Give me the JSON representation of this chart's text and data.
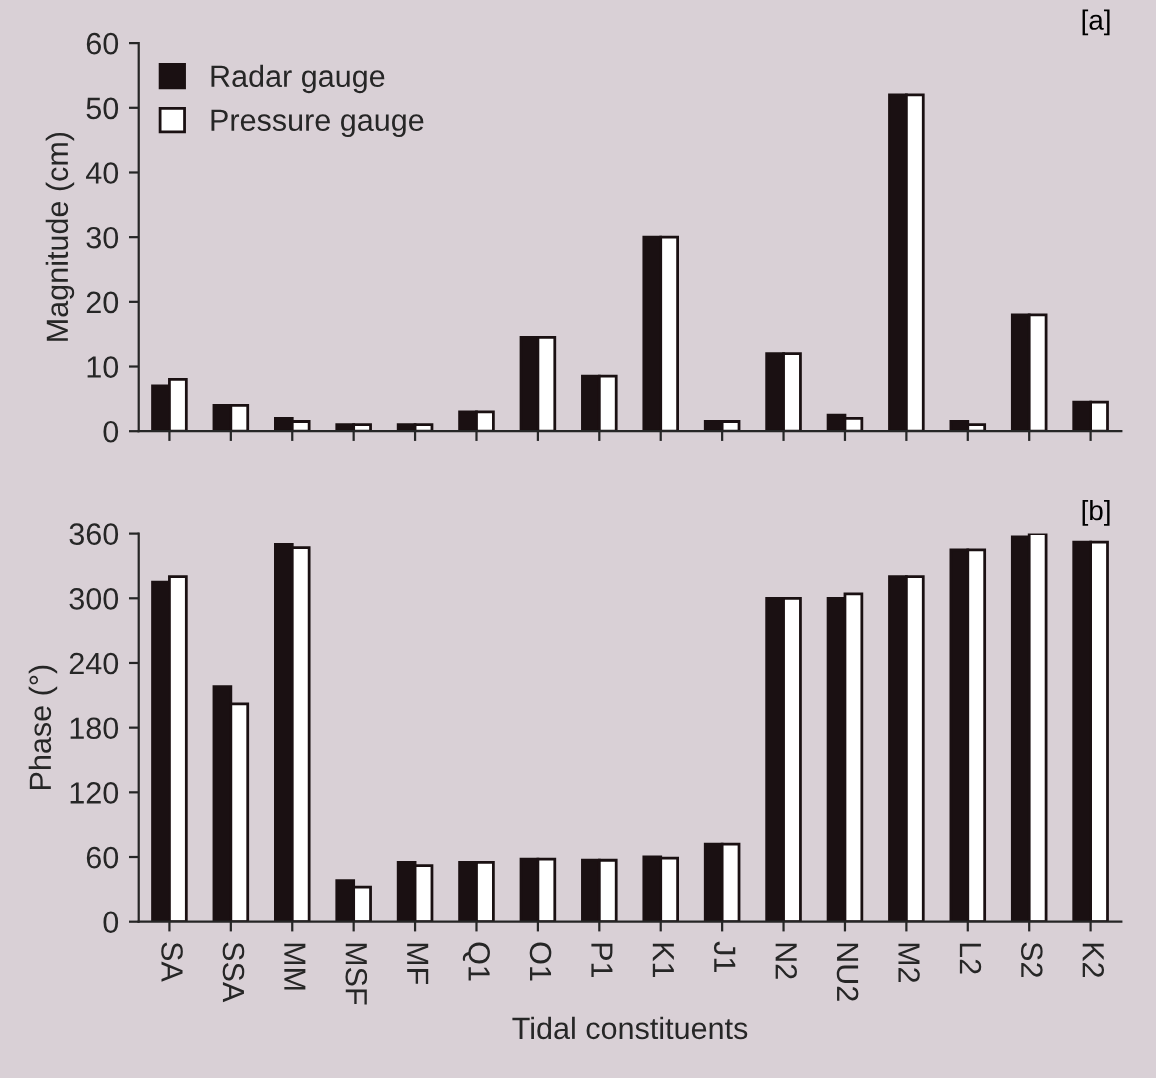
{
  "chart_data": [
    {
      "type": "bar",
      "ylabel": "Magnitude (cm)",
      "annotations": [
        "[a]"
      ],
      "categories": [
        null,
        null,
        null,
        null,
        null,
        null,
        null,
        null,
        null,
        null,
        null,
        null,
        null,
        null,
        null,
        null
      ],
      "series": [
        {
          "name": "Radar gauge",
          "color": "#1a1012",
          "values": [
            7,
            4,
            2,
            1,
            1,
            3,
            14.5,
            8.5,
            30,
            1.5,
            12,
            2.5,
            52,
            1.5,
            18,
            4.5
          ]
        },
        {
          "name": "Pressure gauge",
          "color": "#ffffff",
          "values": [
            8,
            4,
            1.5,
            1,
            1,
            3,
            14.5,
            8.5,
            30,
            1.5,
            12,
            2,
            52,
            1,
            18,
            4.5
          ]
        }
      ],
      "ylim": [
        0,
        60
      ],
      "yticks": [
        0,
        10,
        20,
        30,
        40,
        50,
        60
      ],
      "tick_labels": "y",
      "legend": "top left",
      "grid": false
    },
    {
      "type": "bar",
      "ylabel": "Phase (°)",
      "xlabel": "Tidal constituents",
      "annotations": [
        "[b]"
      ],
      "categories": [
        "SA",
        "SSA",
        "MM",
        "MSF",
        "MF",
        "Q1",
        "O1",
        "P1",
        "K1",
        "J1",
        "N2",
        "NU2",
        "M2",
        "L2",
        "S2",
        "K2"
      ],
      "series": [
        {
          "color": "#1a1012",
          "values": [
            315,
            218,
            350,
            38,
            55,
            55,
            58,
            57,
            60,
            72,
            300,
            300,
            320,
            345,
            357,
            352
          ]
        },
        {
          "color": "#ffffff",
          "values": [
            320,
            202,
            347,
            32,
            52,
            55,
            58,
            57,
            59,
            72,
            300,
            304,
            320,
            345,
            360,
            352
          ]
        }
      ],
      "ylim": [
        0,
        360
      ],
      "yticks": [
        0,
        60,
        120,
        180,
        240,
        300,
        360
      ],
      "legend": false,
      "grid": false
    }
  ]
}
